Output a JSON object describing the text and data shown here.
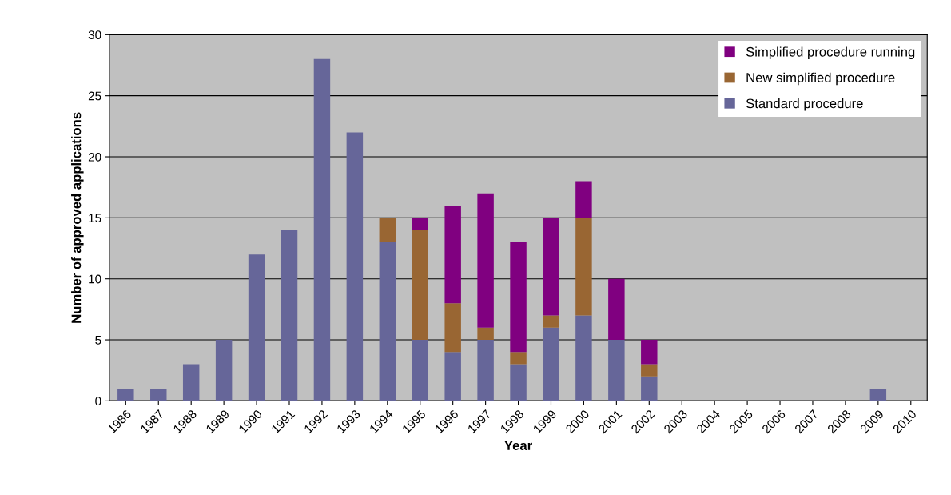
{
  "chart_data": {
    "type": "bar",
    "stacked": true,
    "xlabel": "Year",
    "ylabel": "Number of approved applications",
    "categories": [
      "1986",
      "1987",
      "1988",
      "1989",
      "1990",
      "1991",
      "1992",
      "1993",
      "1994",
      "1995",
      "1996",
      "1997",
      "1998",
      "1999",
      "2000",
      "2001",
      "2002",
      "2003",
      "2004",
      "2005",
      "2006",
      "2007",
      "2008",
      "2009",
      "2010"
    ],
    "series": [
      {
        "name": "Standard procedure",
        "color": "#666699",
        "values": [
          1,
          1,
          3,
          5,
          12,
          14,
          28,
          22,
          13,
          5,
          4,
          5,
          3,
          6,
          7,
          5,
          2,
          0,
          0,
          0,
          0,
          0,
          0,
          1,
          0
        ]
      },
      {
        "name": "New simplified procedure",
        "color": "#996633",
        "values": [
          0,
          0,
          0,
          0,
          0,
          0,
          0,
          0,
          2,
          9,
          4,
          1,
          1,
          1,
          8,
          0,
          1,
          0,
          0,
          0,
          0,
          0,
          0,
          0,
          0
        ]
      },
      {
        "name": "Simplified procedure running",
        "color": "#800080",
        "values": [
          0,
          0,
          0,
          0,
          0,
          0,
          0,
          0,
          0,
          1,
          8,
          11,
          9,
          8,
          3,
          5,
          2,
          0,
          0,
          0,
          0,
          0,
          0,
          0,
          0
        ]
      }
    ],
    "ylim": [
      0,
      30
    ],
    "yticks": [
      0,
      5,
      10,
      15,
      20,
      25,
      30
    ],
    "grid": "y",
    "legend": "top right"
  }
}
